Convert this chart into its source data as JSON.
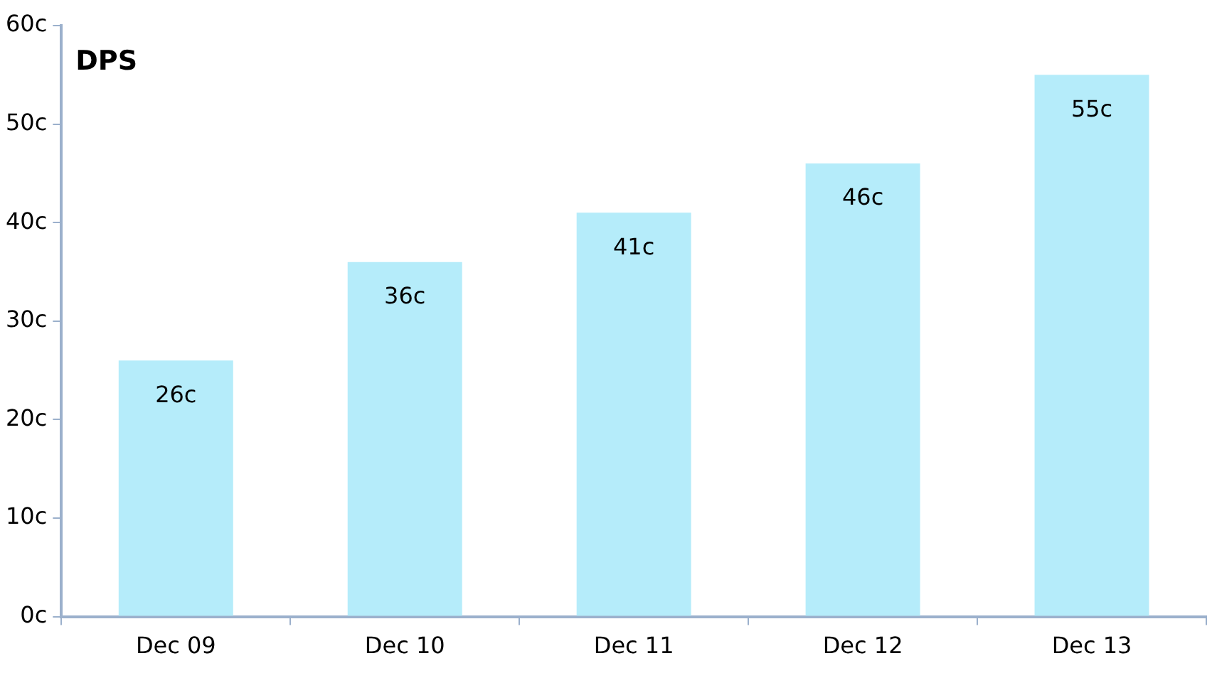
{
  "chart_data": {
    "type": "bar",
    "title": "DPS",
    "categories": [
      "Dec 09",
      "Dec 10",
      "Dec 11",
      "Dec 12",
      "Dec 13"
    ],
    "values": [
      26,
      36,
      41,
      46,
      55
    ],
    "value_labels": [
      "26c",
      "36c",
      "41c",
      "46c",
      "55c"
    ],
    "color": "#b5ecfa",
    "ylim": [
      0,
      60
    ],
    "yticks": [
      {
        "value": 0,
        "label": "0c"
      },
      {
        "value": 10,
        "label": "10c"
      },
      {
        "value": 20,
        "label": "20c"
      },
      {
        "value": 30,
        "label": "30c"
      },
      {
        "value": 40,
        "label": "40c"
      },
      {
        "value": 50,
        "label": "50c"
      },
      {
        "value": 60,
        "label": "60c"
      }
    ]
  }
}
